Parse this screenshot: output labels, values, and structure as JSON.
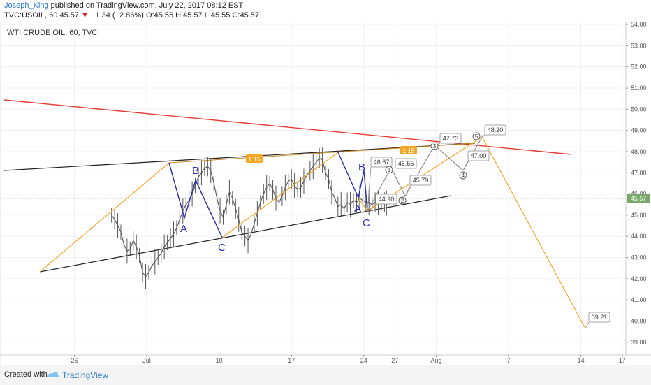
{
  "header": {
    "author": "Joseph_King",
    "published_text": "published on TradingView.com, July 22, 2017 08:12 EST",
    "symbol": "TVC:USOIL, 60",
    "last": "45.57",
    "down_arrow": "▼",
    "change": "−1.34 (−2.86%)",
    "ohlc": "O:45.55 H:45.57 L:45.55 C:45.57"
  },
  "chart_title": "WTI CRUDE OIL, 60, TVC",
  "footer": {
    "created_with": "Created with",
    "brand": "TradingView"
  },
  "colors": {
    "price_bars": "#555555",
    "resistance": "#e53935",
    "trendline": "#222222",
    "wave_pattern": "#2b2bb8",
    "projection": "#f5a623",
    "forecast": "#888888",
    "last_price_label": "#78a96b"
  },
  "chart_data": {
    "type": "line",
    "title": "WTI CRUDE OIL, 60, TVC",
    "x_ticks": [
      "26",
      "Jul",
      "10",
      "17",
      "24",
      "27",
      "Aug",
      "7",
      "14",
      "17"
    ],
    "y_ticks": [
      "39.00",
      "40.00",
      "41.00",
      "42.00",
      "43.00",
      "44.00",
      "45.00",
      "46.00",
      "47.00",
      "48.00",
      "49.00",
      "50.00",
      "51.00",
      "52.00",
      "53.00",
      "54.00"
    ],
    "ylim": [
      38.4,
      54.1
    ],
    "last_price": "45.57",
    "grid": true,
    "series": [
      {
        "color": "#555555",
        "x": [
          -3.4,
          -3.1,
          -2.8,
          -2.5,
          -2.2,
          -1.9,
          -1.6,
          -1.3,
          -1.0,
          -0.7,
          -0.4,
          -0.1,
          0.2,
          0.5,
          0.8,
          1.1,
          1.4,
          1.7,
          2.0,
          2.3,
          2.6,
          2.9,
          3.2,
          3.5,
          3.8,
          4.1,
          4.4,
          4.7,
          5.0,
          5.3,
          5.6,
          5.9,
          6.2,
          6.5,
          6.8,
          7.1,
          7.4,
          7.7,
          8.0,
          8.3,
          8.6,
          8.9,
          9.2,
          9.5,
          9.8,
          10.1,
          10.4,
          10.7,
          11.0,
          11.3,
          11.6,
          11.9,
          12.2,
          12.5,
          12.8,
          13.1,
          13.4,
          13.7,
          14.0,
          14.3,
          14.6,
          14.9,
          15.2,
          15.5,
          15.8,
          16.1,
          16.4,
          16.7,
          17.0,
          17.3,
          17.6,
          17.9,
          18.2,
          18.5,
          18.8,
          19.1,
          19.4,
          19.7,
          20.0,
          20.3,
          20.6,
          20.9,
          21.2,
          21.5,
          21.8,
          22.1,
          22.4,
          22.7,
          23.0,
          23.2
        ],
        "values": [
          45.0,
          44.8,
          44.5,
          44.2,
          43.6,
          43.3,
          43.4,
          43.8,
          43.5,
          43.1,
          42.3,
          42.1,
          42.3,
          42.6,
          42.8,
          43.0,
          43.2,
          43.5,
          43.7,
          43.9,
          44.1,
          44.4,
          44.8,
          45.2,
          45.5,
          45.7,
          46.0,
          46.4,
          46.8,
          47.0,
          47.2,
          47.3,
          47.1,
          46.5,
          45.8,
          45.2,
          44.9,
          45.5,
          46.1,
          45.8,
          45.3,
          44.8,
          44.2,
          44.0,
          43.8,
          44.1,
          44.6,
          45.1,
          45.6,
          46.0,
          46.3,
          46.5,
          46.2,
          45.8,
          45.6,
          45.9,
          46.3,
          46.6,
          46.7,
          46.4,
          46.2,
          46.3,
          46.6,
          46.9,
          47.1,
          47.3,
          47.5,
          47.7,
          47.6,
          47.0,
          46.7,
          46.1,
          45.8,
          45.4,
          45.5,
          45.3,
          45.6,
          45.5,
          45.7,
          45.6,
          45.8,
          45.7,
          45.6,
          45.6,
          45.5,
          45.6,
          45.6,
          45.6,
          45.6,
          45.57
        ]
      }
    ],
    "annotations": {
      "wave_labels": [
        "A",
        "B",
        "C",
        "A",
        "B",
        "C"
      ],
      "fib_labels": [
        "1.15",
        "1.15"
      ],
      "forecast_labels": [
        "46.67",
        "46.65",
        "45.79",
        "44.90",
        "47.73",
        "48.20",
        "47.00",
        "39.21"
      ],
      "wave_numbers": [
        "1",
        "2",
        "3",
        "4",
        "5"
      ]
    }
  }
}
